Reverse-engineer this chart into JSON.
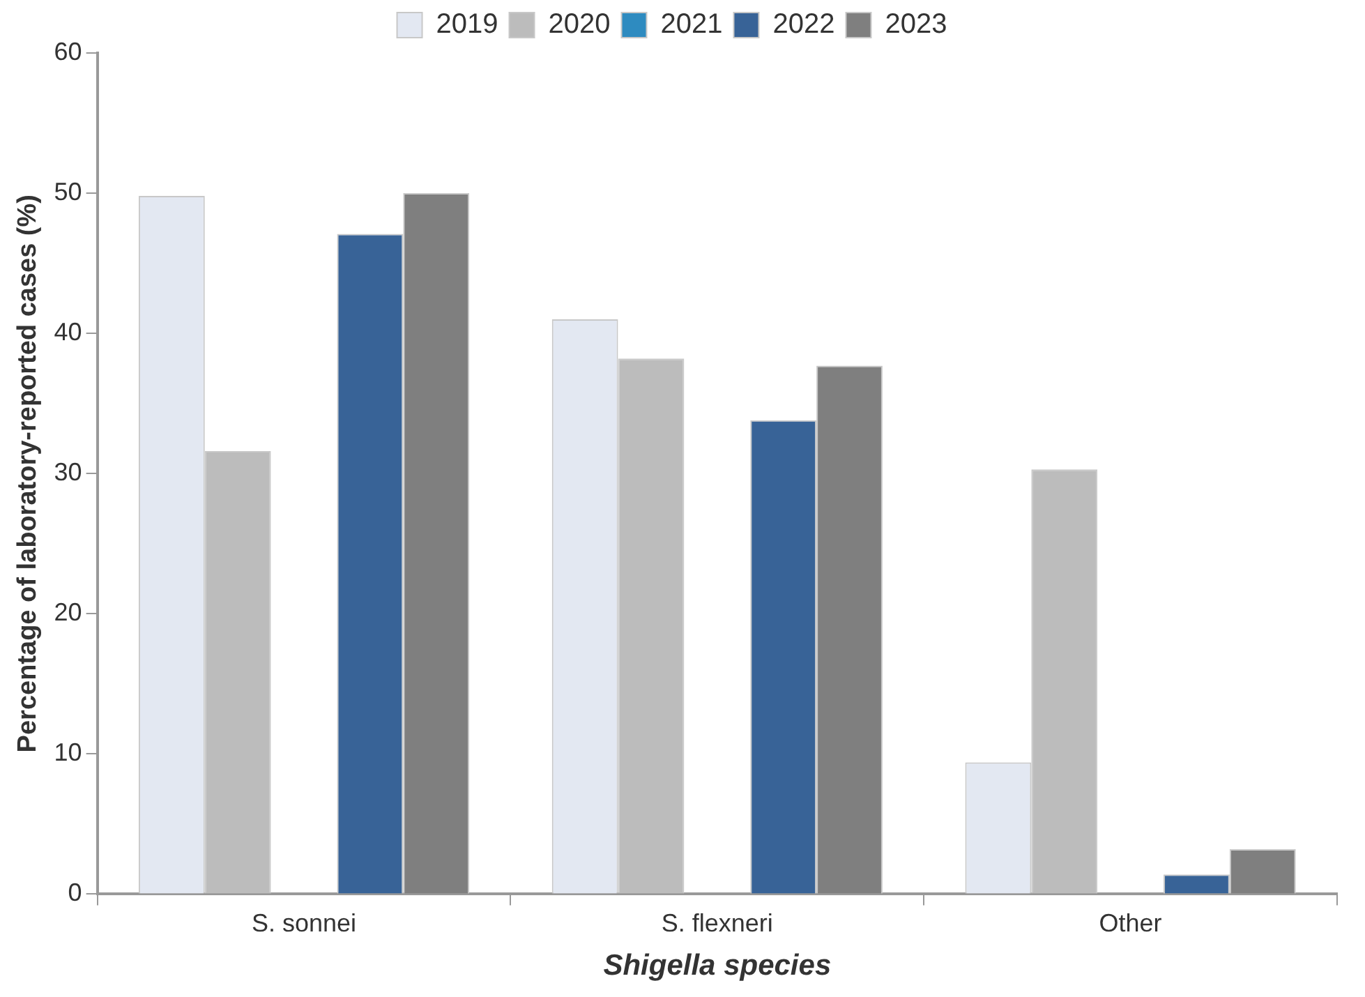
{
  "chart_data": {
    "type": "bar",
    "xlabel": "Shigella species",
    "ylabel": "Percentage of laboratory-reported cases (%)",
    "categories": [
      "S. sonnei",
      "S. flexneri",
      "Other"
    ],
    "series": [
      {
        "name": "2019",
        "color": "#e3e8f2",
        "values": [
          49.8,
          41.0,
          9.4
        ]
      },
      {
        "name": "2020",
        "color": "#bcbcbc",
        "values": [
          31.6,
          38.2,
          30.3
        ]
      },
      {
        "name": "2021",
        "color": "#2e8bc0",
        "values": [
          null,
          null,
          null
        ]
      },
      {
        "name": "2022",
        "color": "#386397",
        "values": [
          47.1,
          33.8,
          1.4
        ]
      },
      {
        "name": "2023",
        "color": "#7f7f7f",
        "values": [
          50.0,
          37.7,
          3.2
        ]
      }
    ],
    "ylim": [
      0,
      60
    ],
    "yticks": [
      0,
      10,
      20,
      30,
      40,
      50,
      60
    ],
    "grid": false,
    "legend": "top"
  }
}
